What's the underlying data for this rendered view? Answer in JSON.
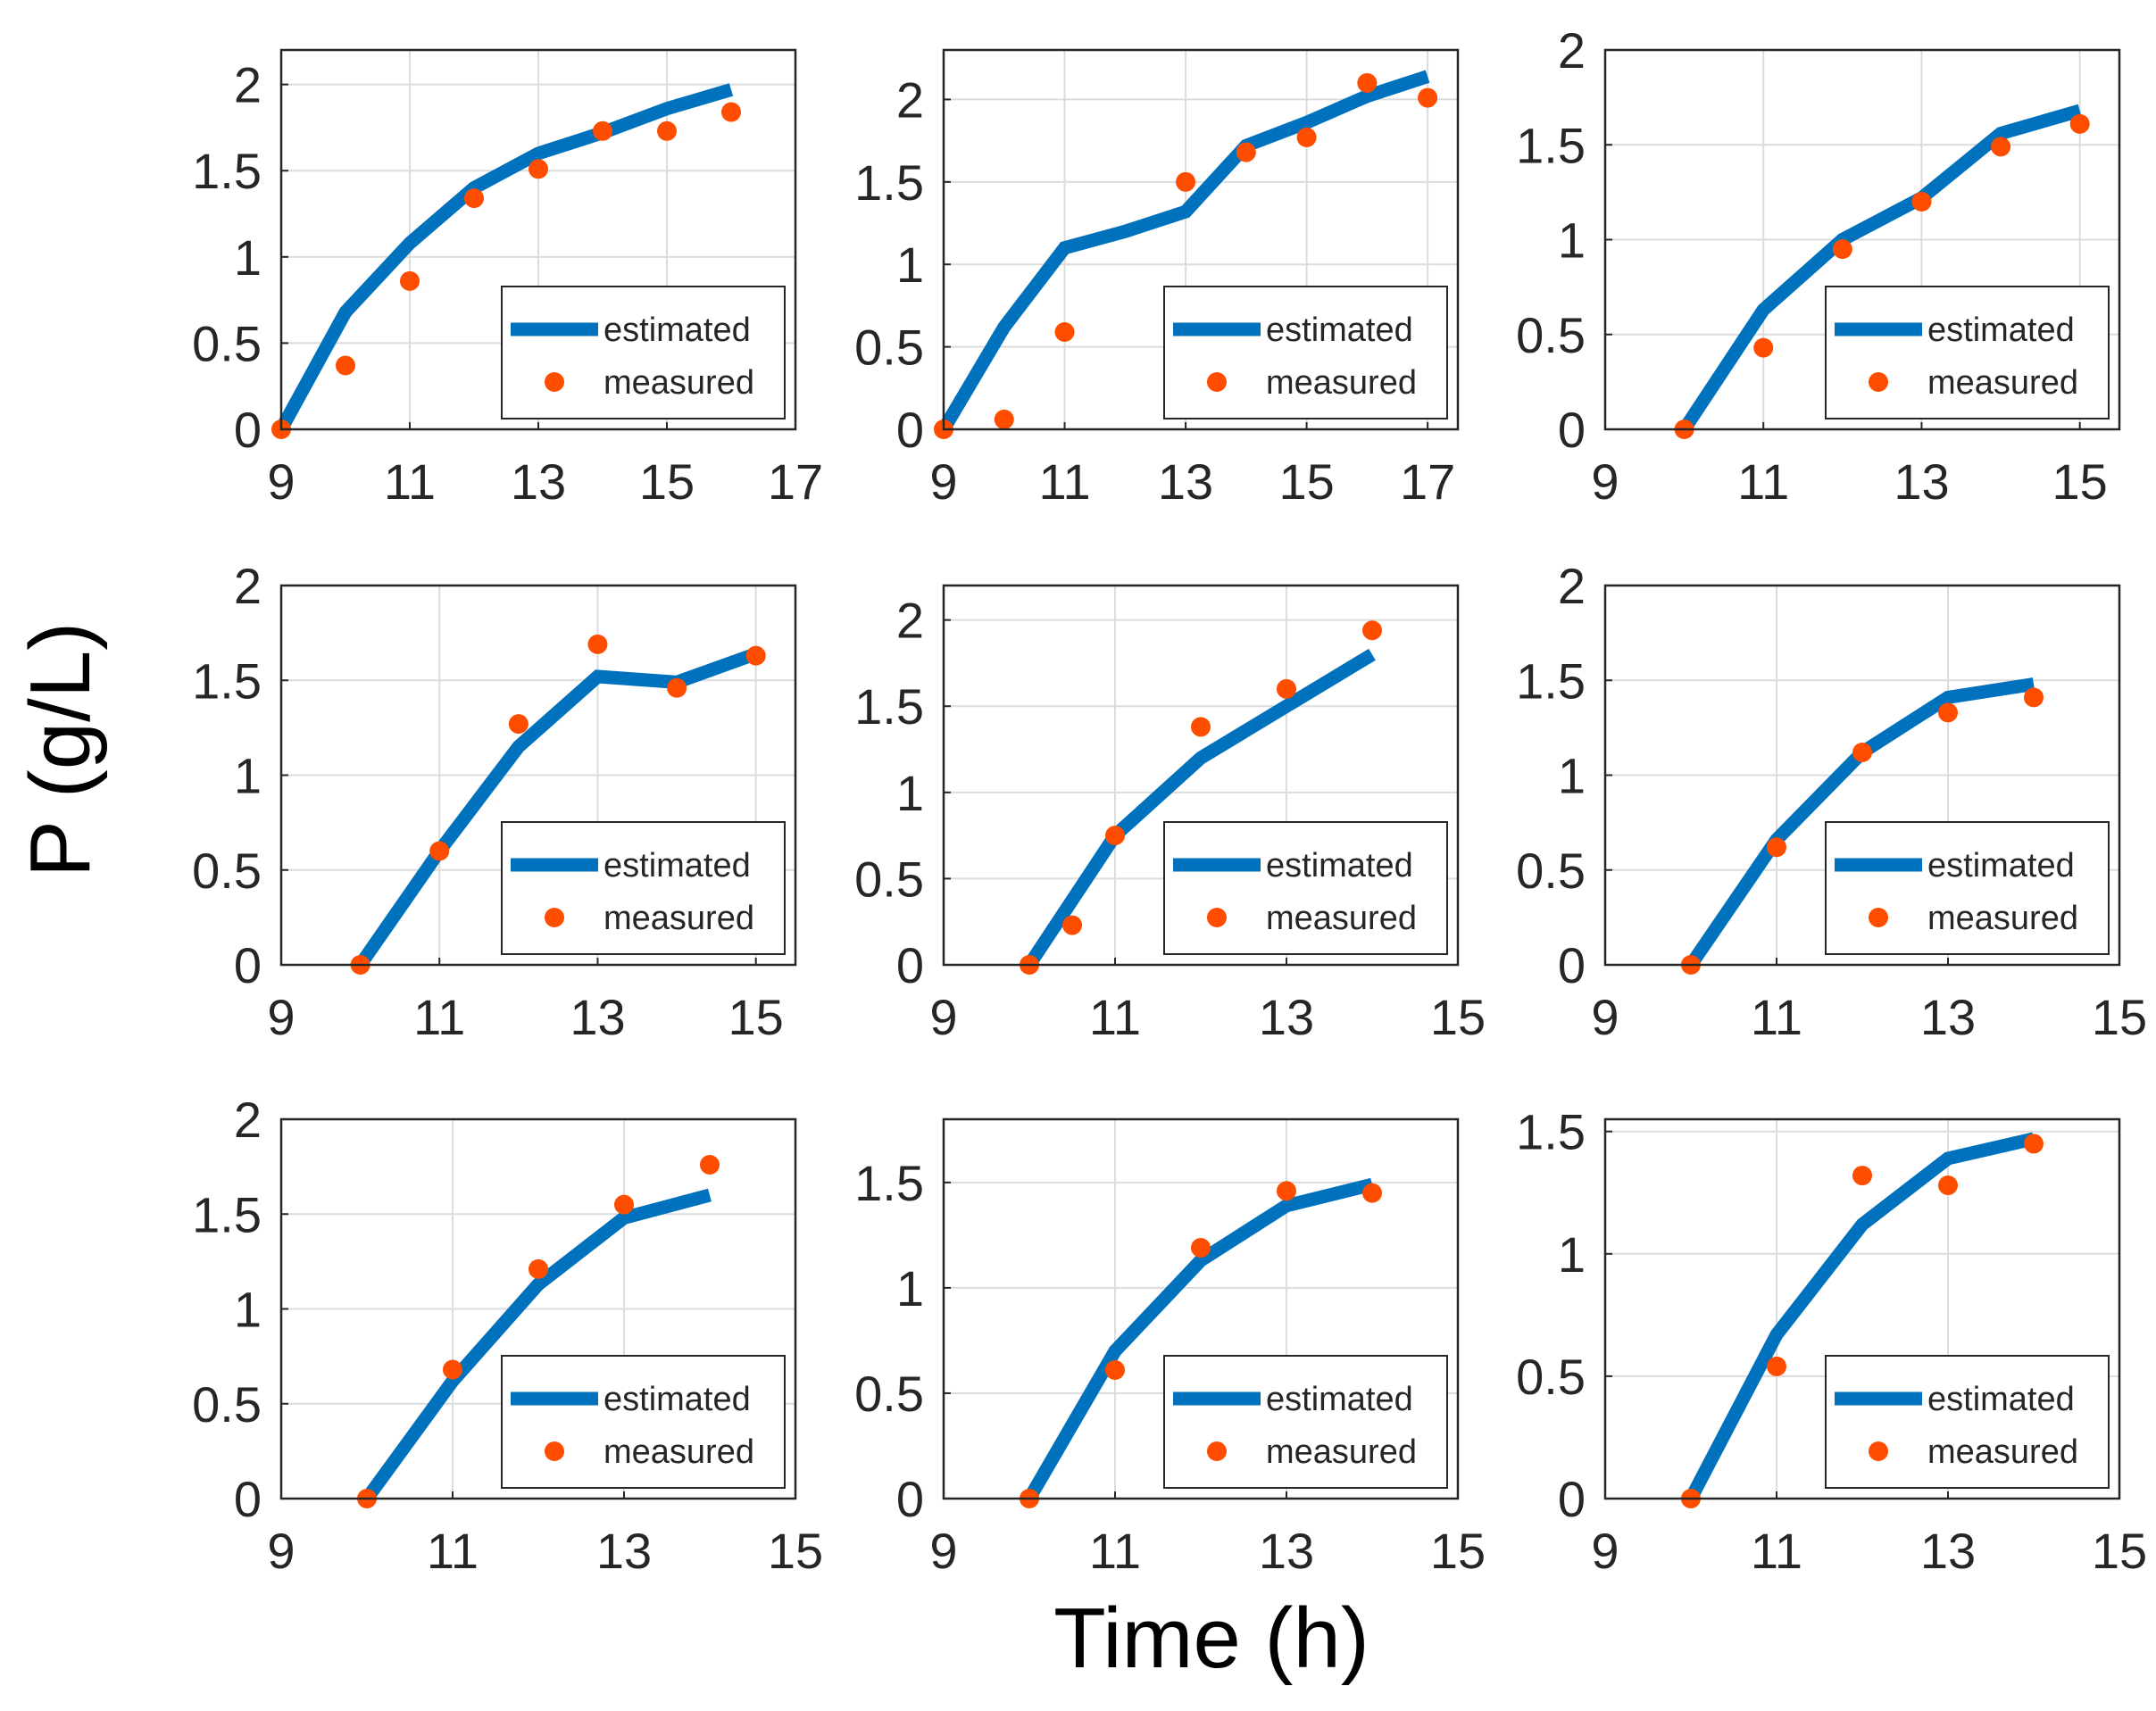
{
  "figure": {
    "ylabel": "P (g/L)",
    "xlabel": "Time (h)",
    "colors": {
      "estimated": "#0072BD",
      "measured": "#FF4D00",
      "grid": "#DCDCDC",
      "axes": "#262626"
    }
  },
  "chart_data": [
    {
      "type": "line",
      "panel": "row1-col1",
      "xlim": [
        9,
        17
      ],
      "ylim": [
        0,
        2.2
      ],
      "xticks": [
        9,
        11,
        13,
        15,
        17
      ],
      "yticks": [
        0,
        0.5,
        1,
        1.5,
        2
      ],
      "legend": "bottom-right",
      "series": [
        {
          "name": "estimated",
          "x": [
            9,
            10,
            11,
            12,
            13,
            14,
            15,
            16
          ],
          "y": [
            0,
            0.68,
            1.08,
            1.4,
            1.6,
            1.72,
            1.86,
            1.97
          ]
        },
        {
          "name": "measured",
          "x": [
            9,
            10,
            11,
            12,
            13,
            14,
            15,
            16
          ],
          "y": [
            0,
            0.37,
            0.86,
            1.34,
            1.51,
            1.73,
            1.73,
            1.84
          ]
        }
      ]
    },
    {
      "type": "line",
      "panel": "row1-col2",
      "xlim": [
        9,
        17.5
      ],
      "ylim": [
        0,
        2.3
      ],
      "xticks": [
        9,
        11,
        13,
        15,
        17
      ],
      "yticks": [
        0,
        0.5,
        1,
        1.5,
        2
      ],
      "legend": "bottom-right",
      "series": [
        {
          "name": "estimated",
          "x": [
            9,
            10,
            11,
            12,
            13,
            14,
            15,
            16,
            17
          ],
          "y": [
            0,
            0.62,
            1.1,
            1.2,
            1.32,
            1.72,
            1.86,
            2.02,
            2.14
          ]
        },
        {
          "name": "measured",
          "x": [
            9,
            10,
            11,
            13,
            14,
            15,
            16,
            17
          ],
          "y": [
            0,
            0.06,
            0.59,
            1.5,
            1.68,
            1.77,
            2.1,
            2.01
          ]
        }
      ]
    },
    {
      "type": "line",
      "panel": "row1-col3",
      "xlim": [
        9,
        15.5
      ],
      "ylim": [
        0,
        2
      ],
      "xticks": [
        9,
        11,
        13,
        15
      ],
      "yticks": [
        0,
        0.5,
        1,
        1.5,
        2
      ],
      "legend": "bottom-right",
      "series": [
        {
          "name": "estimated",
          "x": [
            10,
            11,
            12,
            13,
            14,
            15
          ],
          "y": [
            0,
            0.63,
            1.0,
            1.22,
            1.56,
            1.68
          ]
        },
        {
          "name": "measured",
          "x": [
            10,
            11,
            12,
            13,
            14,
            15
          ],
          "y": [
            0,
            0.43,
            0.95,
            1.2,
            1.49,
            1.61
          ]
        }
      ]
    },
    {
      "type": "line",
      "panel": "row2-col1",
      "xlim": [
        9,
        15.5
      ],
      "ylim": [
        0,
        2
      ],
      "xticks": [
        9,
        11,
        13,
        15
      ],
      "yticks": [
        0,
        0.5,
        1,
        1.5,
        2
      ],
      "legend": "bottom-right",
      "series": [
        {
          "name": "estimated",
          "x": [
            10,
            11,
            12,
            13,
            14,
            15
          ],
          "y": [
            0,
            0.6,
            1.15,
            1.52,
            1.49,
            1.64
          ]
        },
        {
          "name": "measured",
          "x": [
            10,
            11,
            12,
            13,
            14,
            15
          ],
          "y": [
            0,
            0.6,
            1.27,
            1.69,
            1.46,
            1.63
          ]
        }
      ]
    },
    {
      "type": "line",
      "panel": "row2-col2",
      "xlim": [
        9,
        15
      ],
      "ylim": [
        0,
        2.2
      ],
      "xticks": [
        9,
        11,
        13,
        15
      ],
      "yticks": [
        0,
        0.5,
        1,
        1.5,
        2
      ],
      "legend": "bottom-right",
      "series": [
        {
          "name": "estimated",
          "x": [
            10,
            11,
            12,
            13,
            14
          ],
          "y": [
            0,
            0.75,
            1.2,
            1.5,
            1.8
          ]
        },
        {
          "name": "measured",
          "x": [
            10,
            10.5,
            11,
            12,
            13,
            14
          ],
          "y": [
            0,
            0.23,
            0.75,
            1.38,
            1.6,
            1.94
          ]
        }
      ]
    },
    {
      "type": "line",
      "panel": "row2-col3",
      "xlim": [
        9,
        15
      ],
      "ylim": [
        0,
        2
      ],
      "xticks": [
        9,
        11,
        13,
        15
      ],
      "yticks": [
        0,
        0.5,
        1,
        1.5,
        2
      ],
      "legend": "bottom-right",
      "series": [
        {
          "name": "estimated",
          "x": [
            10,
            11,
            12,
            13,
            14
          ],
          "y": [
            0,
            0.66,
            1.12,
            1.41,
            1.48
          ]
        },
        {
          "name": "measured",
          "x": [
            10,
            11,
            12,
            13,
            14
          ],
          "y": [
            0,
            0.62,
            1.12,
            1.33,
            1.41
          ]
        }
      ]
    },
    {
      "type": "line",
      "panel": "row3-col1",
      "xlim": [
        9,
        15
      ],
      "ylim": [
        0,
        2
      ],
      "xticks": [
        9,
        11,
        13,
        15
      ],
      "yticks": [
        0,
        0.5,
        1,
        1.5,
        2
      ],
      "legend": "bottom-right",
      "series": [
        {
          "name": "estimated",
          "x": [
            10,
            11,
            12,
            13,
            14
          ],
          "y": [
            0,
            0.62,
            1.13,
            1.48,
            1.6
          ]
        },
        {
          "name": "measured",
          "x": [
            10,
            11,
            12,
            13,
            14
          ],
          "y": [
            0,
            0.68,
            1.21,
            1.55,
            1.76
          ]
        }
      ]
    },
    {
      "type": "line",
      "panel": "row3-col2",
      "xlim": [
        9,
        15
      ],
      "ylim": [
        0,
        1.8
      ],
      "xticks": [
        9,
        11,
        13,
        15
      ],
      "yticks": [
        0,
        0.5,
        1,
        1.5
      ],
      "legend": "bottom-right",
      "series": [
        {
          "name": "estimated",
          "x": [
            10,
            11,
            12,
            13,
            14
          ],
          "y": [
            0,
            0.7,
            1.13,
            1.39,
            1.49
          ]
        },
        {
          "name": "measured",
          "x": [
            10,
            11,
            12,
            13,
            14
          ],
          "y": [
            0,
            0.61,
            1.19,
            1.46,
            1.45
          ]
        }
      ]
    },
    {
      "type": "line",
      "panel": "row3-col3",
      "xlim": [
        9,
        15
      ],
      "ylim": [
        0,
        1.55
      ],
      "xticks": [
        9,
        11,
        13,
        15
      ],
      "yticks": [
        0,
        0.5,
        1,
        1.5
      ],
      "legend": "bottom-right",
      "series": [
        {
          "name": "estimated",
          "x": [
            10,
            11,
            12,
            13,
            14
          ],
          "y": [
            0,
            0.67,
            1.12,
            1.39,
            1.47
          ]
        },
        {
          "name": "measured",
          "x": [
            10,
            11,
            12,
            13,
            14
          ],
          "y": [
            0,
            0.54,
            1.32,
            1.28,
            1.45
          ]
        }
      ]
    }
  ]
}
